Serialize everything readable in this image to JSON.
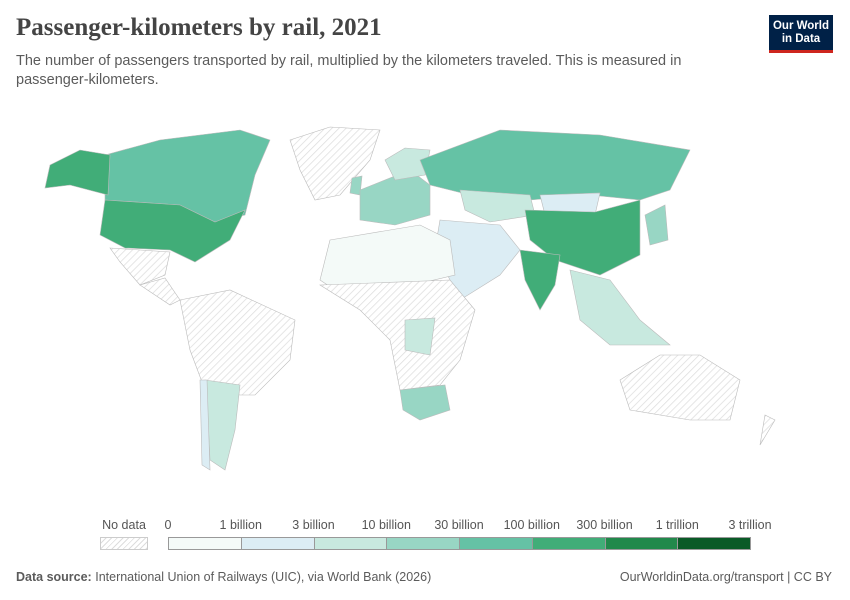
{
  "header": {
    "title": "Passenger-kilometers by rail, 2021",
    "subtitle": "The number of passengers transported by rail, multiplied by the kilometers traveled. This is measured in passenger-kilometers.",
    "logo": "Our World in Data"
  },
  "legend": {
    "no_data_label": "No data",
    "labels": [
      "0",
      "1 billion",
      "3 billion",
      "10 billion",
      "30 billion",
      "100 billion",
      "300 billion",
      "1 trillion",
      "3 trillion"
    ],
    "colors": [
      "#f4faf8",
      "#dcedf4",
      "#c8e9df",
      "#98d6c4",
      "#65c2a5",
      "#41ad78",
      "#21894b",
      "#0a5a27"
    ]
  },
  "footer": {
    "source_label": "Data source:",
    "source": "International Union of Railways (UIC), via World Bank (2026)",
    "link": "OurWorldinData.org/transport | CC BY"
  }
}
